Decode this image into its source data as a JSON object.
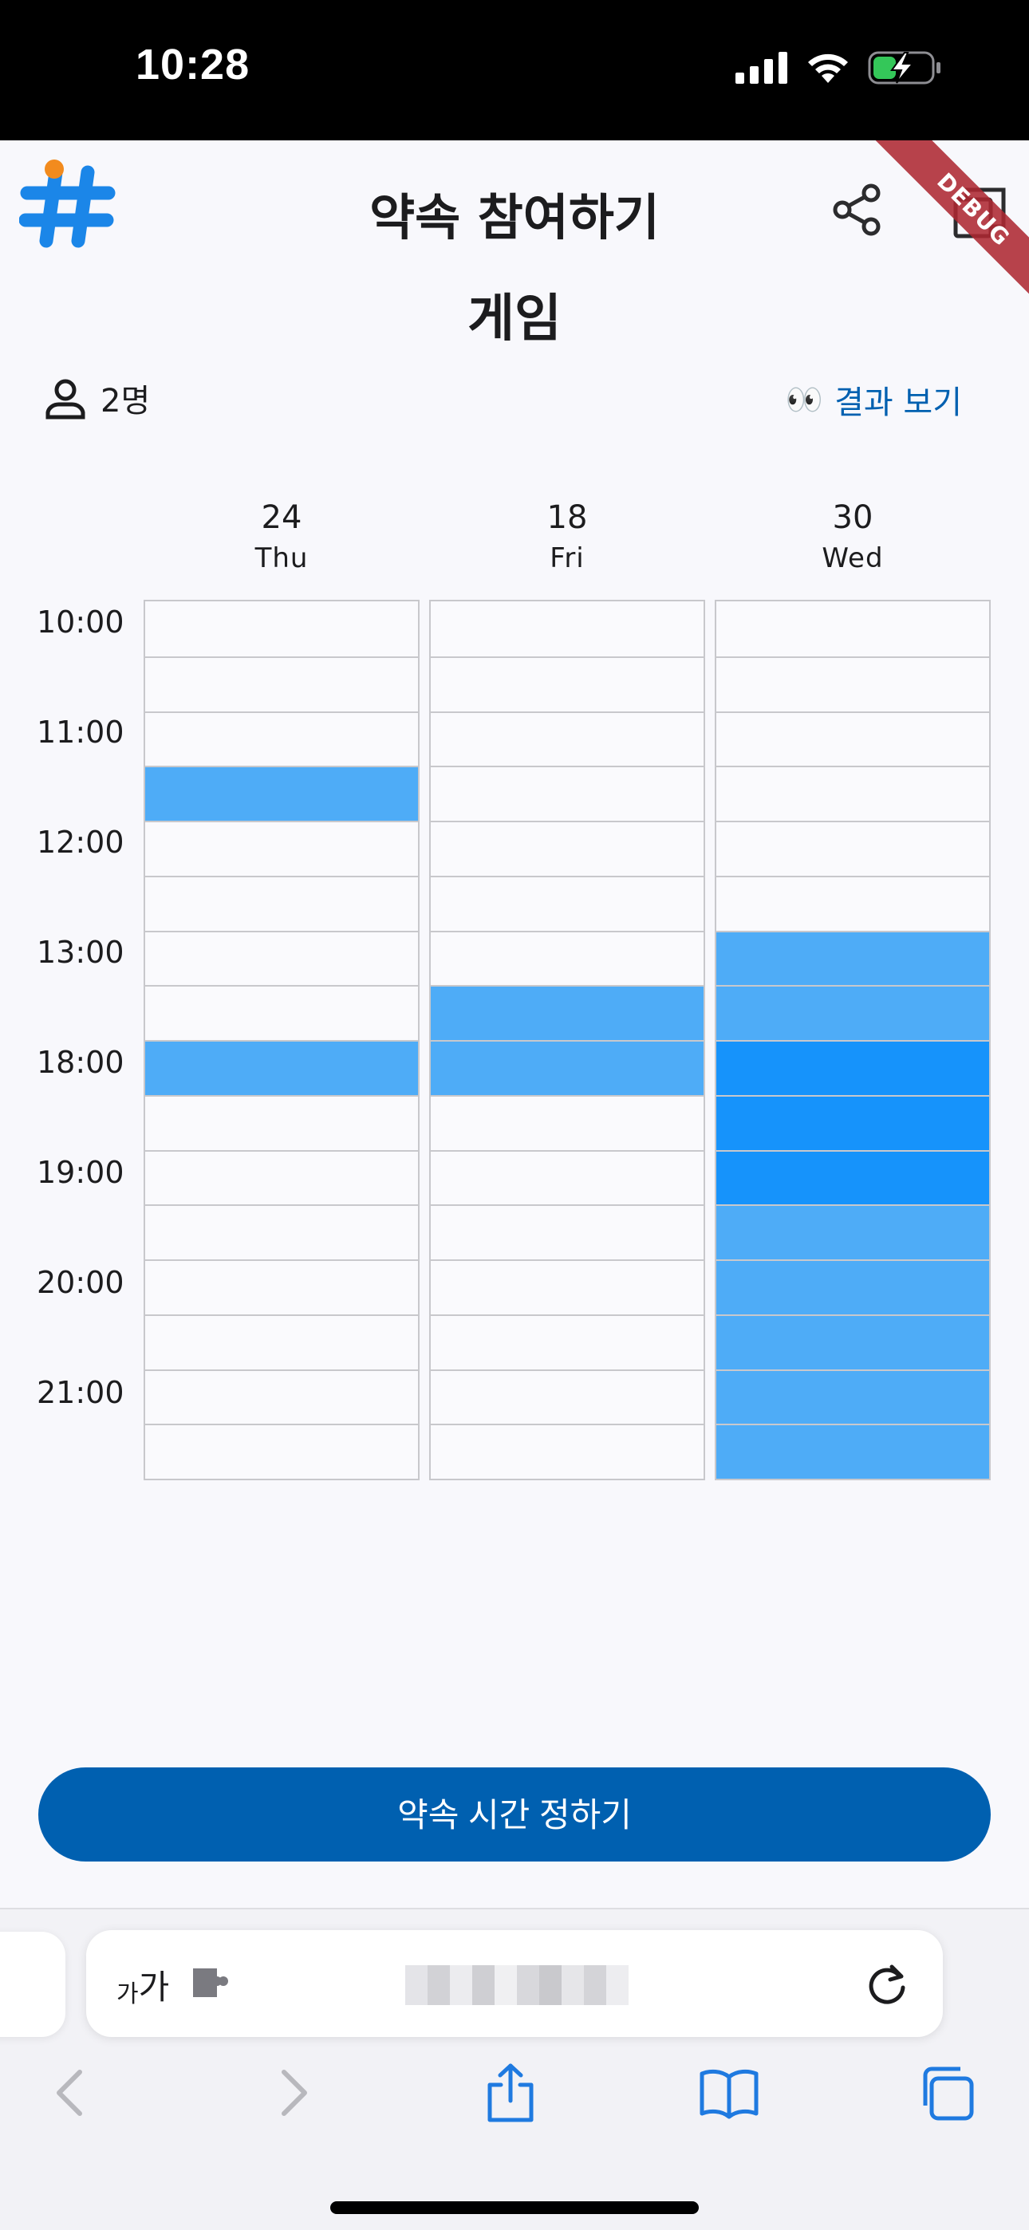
{
  "status_bar": {
    "time": "10:28"
  },
  "header": {
    "title": "약속 참여하기",
    "debug_label": "DEBUG"
  },
  "event": {
    "title": "게임",
    "participants": "2명",
    "view_results_emoji": "👀",
    "view_results": "결과 보기"
  },
  "schedule": {
    "days": [
      {
        "date": "24",
        "weekday": "Thu",
        "selected_slots": [
          3,
          8
        ]
      },
      {
        "date": "18",
        "weekday": "Fri",
        "selected_slots": [
          7,
          8
        ]
      },
      {
        "date": "30",
        "weekday": "Wed",
        "selected_slots": [
          6,
          7,
          8,
          9,
          10,
          11,
          12,
          13,
          14,
          15
        ],
        "strong_slots": [
          8,
          9,
          10
        ]
      }
    ],
    "time_labels": [
      "10:00",
      "11:00",
      "12:00",
      "13:00",
      "18:00",
      "19:00",
      "20:00",
      "21:00"
    ],
    "slot_count": 16,
    "colors": {
      "selected": "#4eacf7",
      "strong": "#1693fb",
      "empty": "#fafafd",
      "border": "#c8c8cc"
    }
  },
  "confirm_button": {
    "label": "약속 시간 정하기"
  },
  "browser": {
    "aa_small": "가",
    "aa_large": "가",
    "icons": {
      "extension": "puzzle-piece-icon",
      "reload": "reload-icon",
      "back": "chevron-left-icon",
      "forward": "chevron-right-icon",
      "share": "share-icon",
      "bookmarks": "book-icon",
      "tabs": "tabs-icon"
    }
  }
}
